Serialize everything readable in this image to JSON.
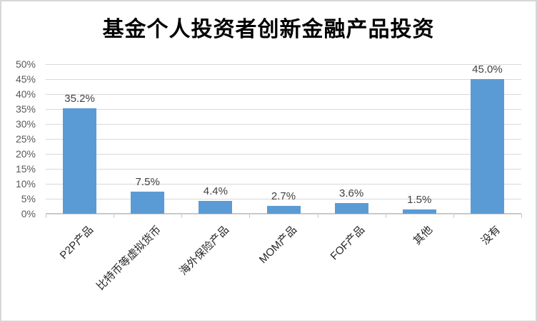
{
  "chart_data": {
    "type": "bar",
    "title": "基金个人投资者创新金融产品投资",
    "categories": [
      "P2P产品",
      "比特币等虚拟货币",
      "海外保险产品",
      "MOM产品",
      "FOF产品",
      "其他",
      "没有"
    ],
    "values": [
      35.2,
      7.5,
      4.4,
      2.7,
      3.6,
      1.5,
      45.0
    ],
    "value_labels": [
      "35.2%",
      "7.5%",
      "4.4%",
      "2.7%",
      "3.6%",
      "1.5%",
      "45.0%"
    ],
    "y_ticks": [
      "0%",
      "5%",
      "10%",
      "15%",
      "20%",
      "25%",
      "30%",
      "35%",
      "40%",
      "45%",
      "50%"
    ],
    "ylim": [
      0,
      50
    ],
    "y_step": 5,
    "xlabel": "",
    "ylabel": "",
    "grid": true,
    "legend_position": "none",
    "colors": {
      "bar": "#5B9BD5",
      "gridline": "#D9D9D9",
      "axis_line": "#C9C9C9",
      "y_tick_text": "#595959",
      "x_tick_text": "#262626",
      "value_label_text": "#404040",
      "title_text": "#000000",
      "chart_border": "#D7D7D7",
      "background": "#FFFFFF"
    }
  }
}
